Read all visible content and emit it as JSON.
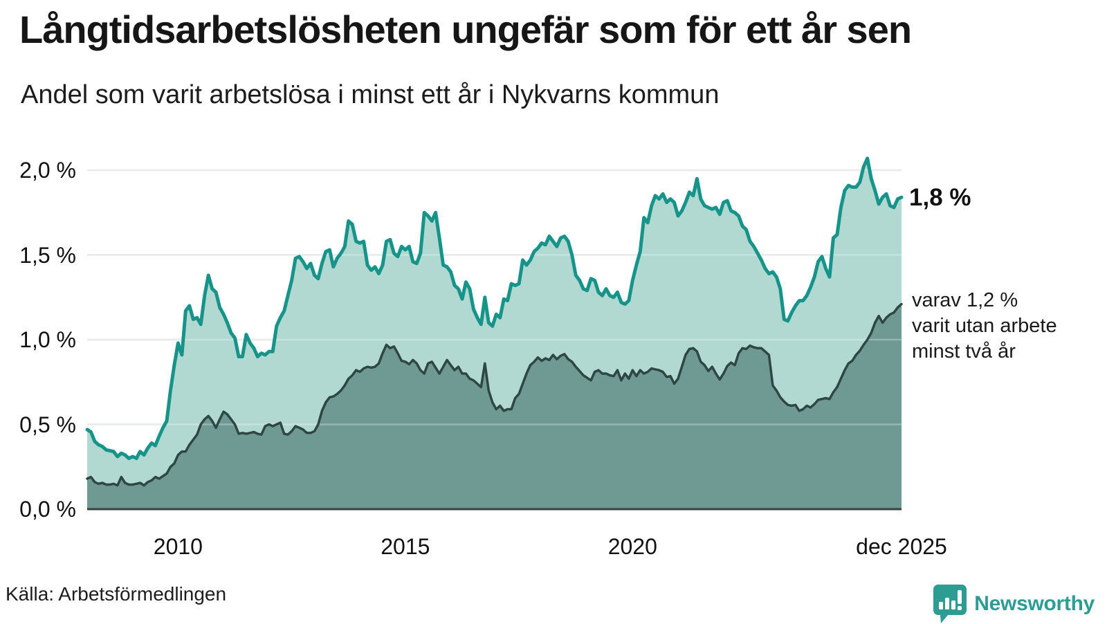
{
  "title": "Långtidsarbetslösheten ungefär som för ett år sen",
  "subtitle": "Andel som varit arbetslösa i minst ett år i Nykvarns kommun",
  "source": "Källa: Arbetsförmedlingen",
  "brand": {
    "name": "Newsworthy",
    "color": "#2d9c92",
    "icon": "bar-chart-speech-bubble"
  },
  "annotations": {
    "latest_value": "1,8 %",
    "secondary_note": "varav 1,2 %\nvarit utan arbete\nminst två år"
  },
  "axes": {
    "y_ticks": [
      {
        "label": "2,0 %",
        "value": 2.0
      },
      {
        "label": "1,5 %",
        "value": 1.5
      },
      {
        "label": "1,0 %",
        "value": 1.0
      },
      {
        "label": "0,5 %",
        "value": 0.5
      },
      {
        "label": "0,0 %",
        "value": 0.0
      }
    ],
    "x_ticks": [
      {
        "label": "2010",
        "value": 2010.0
      },
      {
        "label": "2015",
        "value": 2015.0
      },
      {
        "label": "2020",
        "value": 2020.0
      },
      {
        "label": "dec 2025",
        "value": 2025.917
      }
    ]
  },
  "colors": {
    "line_long": "#17948a",
    "fill_long": "#b2d8d2",
    "line_verylong": "#2e4743",
    "fill_verylong": "#6f9a94",
    "gridline": "#e0e2e6",
    "axis": "#3a403e",
    "background": "#ffffff"
  },
  "chart_data": {
    "type": "area",
    "title": "Andel som varit arbetslösa i minst ett år i Nykvarns kommun",
    "x_unit": "decimal_year_monthly",
    "x_start": 2008.0,
    "x_step": 0.08333,
    "n_points": 216,
    "xlim": [
      2008.0,
      2025.917
    ],
    "ylim": [
      0,
      2.2
    ],
    "grid": true,
    "y_tick_values": [
      0.5,
      1.0,
      1.5,
      2.0
    ],
    "series": [
      {
        "name": "Andel arbetslösa minst ett år",
        "end_label": "1,8 %",
        "values": [
          0.47,
          0.455,
          0.4,
          0.38,
          0.37,
          0.35,
          0.345,
          0.34,
          0.31,
          0.33,
          0.32,
          0.3,
          0.31,
          0.3,
          0.34,
          0.32,
          0.36,
          0.39,
          0.375,
          0.43,
          0.48,
          0.52,
          0.7,
          0.85,
          0.98,
          0.91,
          1.17,
          1.2,
          1.12,
          1.13,
          1.09,
          1.26,
          1.38,
          1.3,
          1.28,
          1.19,
          1.15,
          1.1,
          1.04,
          1.01,
          0.9,
          0.9,
          1.03,
          0.98,
          0.95,
          0.9,
          0.92,
          0.91,
          0.93,
          0.93,
          1.08,
          1.13,
          1.17,
          1.26,
          1.35,
          1.48,
          1.49,
          1.46,
          1.42,
          1.45,
          1.38,
          1.36,
          1.45,
          1.52,
          1.53,
          1.43,
          1.48,
          1.51,
          1.55,
          1.7,
          1.68,
          1.58,
          1.57,
          1.58,
          1.44,
          1.41,
          1.43,
          1.39,
          1.44,
          1.58,
          1.59,
          1.51,
          1.49,
          1.55,
          1.53,
          1.55,
          1.46,
          1.45,
          1.51,
          1.75,
          1.73,
          1.7,
          1.75,
          1.6,
          1.44,
          1.43,
          1.4,
          1.32,
          1.3,
          1.24,
          1.34,
          1.3,
          1.18,
          1.13,
          1.09,
          1.25,
          1.1,
          1.08,
          1.15,
          1.13,
          1.24,
          1.23,
          1.33,
          1.32,
          1.33,
          1.47,
          1.44,
          1.47,
          1.52,
          1.54,
          1.57,
          1.56,
          1.61,
          1.58,
          1.55,
          1.6,
          1.61,
          1.58,
          1.5,
          1.38,
          1.35,
          1.3,
          1.29,
          1.36,
          1.35,
          1.28,
          1.26,
          1.3,
          1.26,
          1.25,
          1.28,
          1.22,
          1.21,
          1.23,
          1.35,
          1.44,
          1.52,
          1.72,
          1.69,
          1.79,
          1.85,
          1.83,
          1.86,
          1.81,
          1.83,
          1.81,
          1.73,
          1.76,
          1.81,
          1.87,
          1.85,
          1.95,
          1.83,
          1.79,
          1.78,
          1.77,
          1.78,
          1.74,
          1.81,
          1.82,
          1.76,
          1.75,
          1.73,
          1.67,
          1.65,
          1.58,
          1.55,
          1.51,
          1.47,
          1.42,
          1.39,
          1.4,
          1.37,
          1.3,
          1.12,
          1.11,
          1.16,
          1.2,
          1.23,
          1.23,
          1.26,
          1.31,
          1.37,
          1.46,
          1.49,
          1.42,
          1.37,
          1.6,
          1.62,
          1.78,
          1.88,
          1.91,
          1.9,
          1.9,
          1.93,
          2.02,
          2.07,
          1.95,
          1.88,
          1.8,
          1.84,
          1.86,
          1.79,
          1.78,
          1.83,
          1.84
        ]
      },
      {
        "name": "varav utan arbete minst två år",
        "end_label": "1,2 %",
        "values": [
          0.18,
          0.19,
          0.16,
          0.15,
          0.155,
          0.145,
          0.145,
          0.15,
          0.14,
          0.19,
          0.155,
          0.145,
          0.145,
          0.15,
          0.155,
          0.14,
          0.16,
          0.17,
          0.19,
          0.18,
          0.195,
          0.21,
          0.25,
          0.27,
          0.32,
          0.34,
          0.34,
          0.38,
          0.41,
          0.44,
          0.5,
          0.53,
          0.55,
          0.52,
          0.48,
          0.53,
          0.575,
          0.56,
          0.53,
          0.5,
          0.445,
          0.45,
          0.445,
          0.45,
          0.455,
          0.445,
          0.44,
          0.49,
          0.5,
          0.49,
          0.5,
          0.51,
          0.445,
          0.44,
          0.46,
          0.49,
          0.48,
          0.47,
          0.45,
          0.45,
          0.46,
          0.5,
          0.58,
          0.63,
          0.66,
          0.665,
          0.68,
          0.7,
          0.73,
          0.77,
          0.79,
          0.82,
          0.81,
          0.83,
          0.84,
          0.835,
          0.84,
          0.86,
          0.92,
          0.97,
          0.95,
          0.96,
          0.92,
          0.875,
          0.87,
          0.855,
          0.88,
          0.86,
          0.82,
          0.8,
          0.86,
          0.87,
          0.835,
          0.8,
          0.84,
          0.88,
          0.85,
          0.82,
          0.84,
          0.8,
          0.8,
          0.77,
          0.76,
          0.74,
          0.72,
          0.86,
          0.7,
          0.63,
          0.59,
          0.61,
          0.58,
          0.59,
          0.59,
          0.655,
          0.68,
          0.74,
          0.8,
          0.85,
          0.87,
          0.895,
          0.875,
          0.89,
          0.88,
          0.91,
          0.885,
          0.905,
          0.915,
          0.885,
          0.87,
          0.84,
          0.815,
          0.79,
          0.775,
          0.76,
          0.81,
          0.82,
          0.8,
          0.8,
          0.79,
          0.785,
          0.82,
          0.76,
          0.8,
          0.77,
          0.82,
          0.785,
          0.82,
          0.8,
          0.81,
          0.83,
          0.825,
          0.82,
          0.81,
          0.78,
          0.785,
          0.74,
          0.77,
          0.84,
          0.91,
          0.945,
          0.95,
          0.93,
          0.87,
          0.85,
          0.815,
          0.84,
          0.8,
          0.765,
          0.8,
          0.845,
          0.865,
          0.85,
          0.92,
          0.95,
          0.945,
          0.965,
          0.955,
          0.95,
          0.95,
          0.93,
          0.91,
          0.73,
          0.7,
          0.66,
          0.635,
          0.615,
          0.61,
          0.615,
          0.58,
          0.59,
          0.61,
          0.6,
          0.62,
          0.645,
          0.65,
          0.655,
          0.65,
          0.69,
          0.72,
          0.77,
          0.82,
          0.86,
          0.875,
          0.91,
          0.935,
          0.97,
          1.0,
          1.04,
          1.1,
          1.14,
          1.1,
          1.13,
          1.15,
          1.16,
          1.19,
          1.21
        ]
      }
    ]
  }
}
